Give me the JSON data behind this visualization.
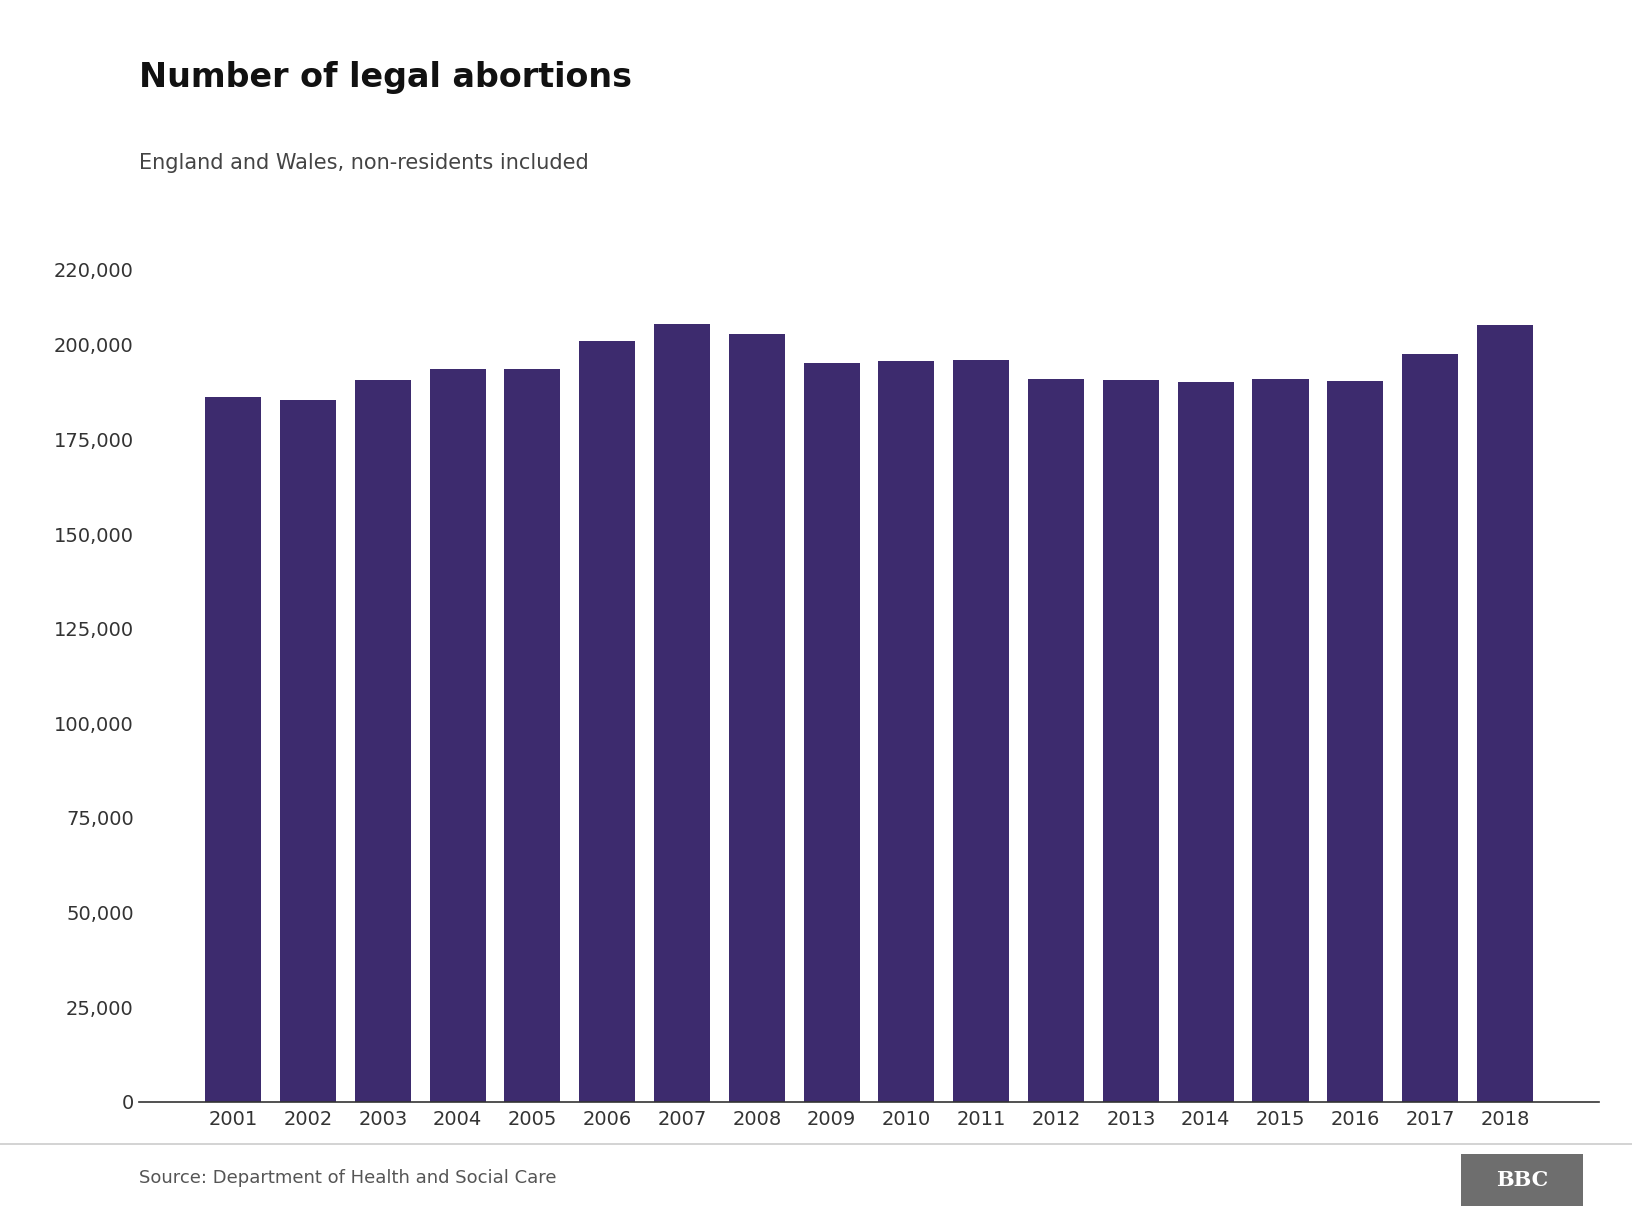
{
  "title": "Number of legal abortions",
  "subtitle": "England and Wales, non-residents included",
  "source": "Source: Department of Health and Social Care",
  "years": [
    2001,
    2002,
    2003,
    2004,
    2005,
    2006,
    2007,
    2008,
    2009,
    2010,
    2011,
    2012,
    2013,
    2014,
    2015,
    2016,
    2017,
    2018
  ],
  "values": [
    186300,
    185400,
    190660,
    193700,
    193700,
    201173,
    205598,
    202980,
    195296,
    195712,
    196082,
    190972,
    190800,
    190092,
    190993,
    190406,
    197533,
    205295
  ],
  "bar_color": "#3d2b6e",
  "background_color": "#ffffff",
  "ylim": [
    0,
    220000
  ],
  "yticks": [
    0,
    25000,
    50000,
    75000,
    100000,
    125000,
    150000,
    175000,
    200000,
    220000
  ],
  "title_fontsize": 24,
  "subtitle_fontsize": 15,
  "tick_fontsize": 14,
  "source_fontsize": 13,
  "bar_width": 0.75
}
